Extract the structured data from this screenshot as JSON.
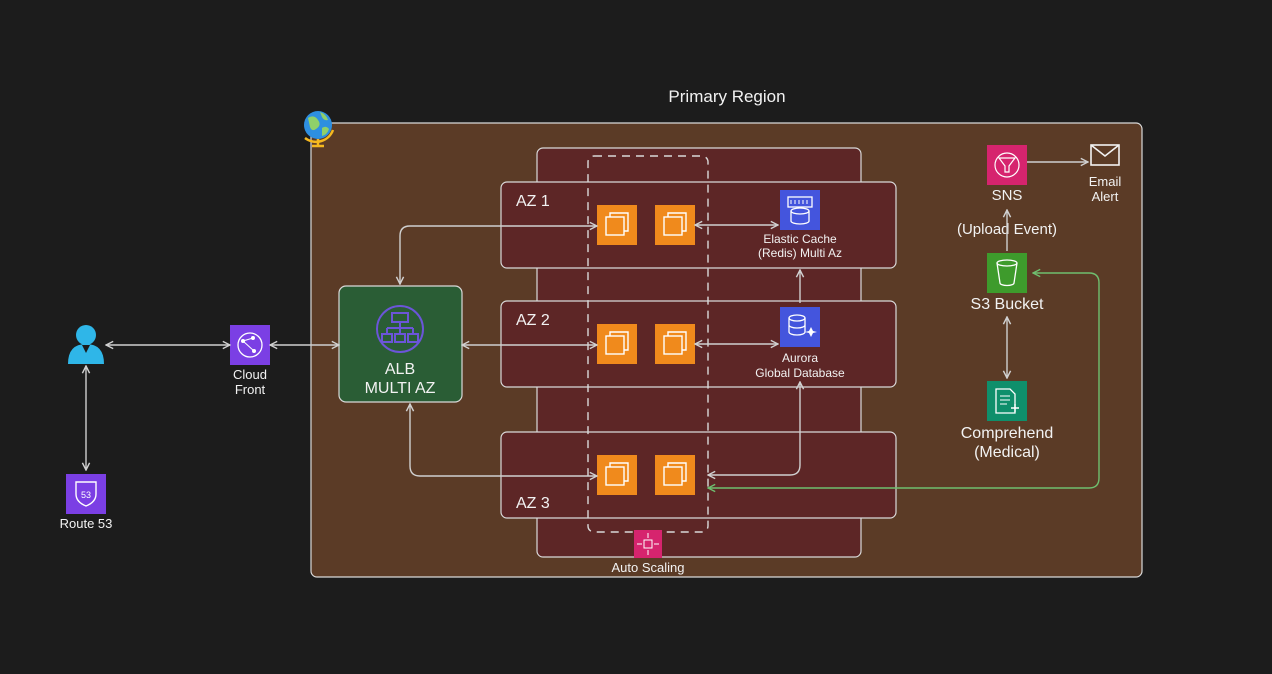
{
  "title": "Primary Region",
  "colors": {
    "background": "#1c1c1c",
    "region_fill": "#5b3b26",
    "az_fill": "#5d2626",
    "alb_fill": "#2a5d35",
    "ec2": "#f08a1c",
    "database": "#4455dd",
    "storage": "#3e9b2c",
    "app_integration": "#d6246e",
    "ml": "#0f8f6b",
    "networking": "#7b3fe4",
    "connector": "#d0d0d0",
    "s3_connector": "#6fbf6f"
  },
  "region": {
    "label": "Primary Region",
    "icon": "globe-icon"
  },
  "user": {
    "icon": "user-icon"
  },
  "cloudfront": {
    "line1": "Cloud",
    "line2": "Front",
    "icon": "cloudfront-icon"
  },
  "route53": {
    "label": "Route 53",
    "icon": "route53-icon"
  },
  "alb": {
    "line1": "ALB",
    "line2": "MULTI AZ",
    "icon": "load-balancer-icon"
  },
  "azs": [
    {
      "label": "AZ 1"
    },
    {
      "label": "AZ 2"
    },
    {
      "label": "AZ 3"
    }
  ],
  "elasticache": {
    "line1": "Elastic Cache",
    "line2": "(Redis) Multi Az",
    "icon": "elasticache-icon"
  },
  "aurora": {
    "line1": "Aurora",
    "line2": "Global Database",
    "icon": "aurora-icon"
  },
  "autoscaling": {
    "label": "Auto Scaling",
    "icon": "autoscaling-icon"
  },
  "sns": {
    "label": "SNS",
    "icon": "sns-icon"
  },
  "email": {
    "line1": "Email",
    "line2": "Alert",
    "icon": "mail-icon"
  },
  "upload_event": "(Upload Event)",
  "s3": {
    "label": "S3 Bucket",
    "icon": "s3-bucket-icon"
  },
  "comprehend": {
    "line1": "Comprehend",
    "line2": "(Medical)",
    "icon": "comprehend-icon"
  }
}
